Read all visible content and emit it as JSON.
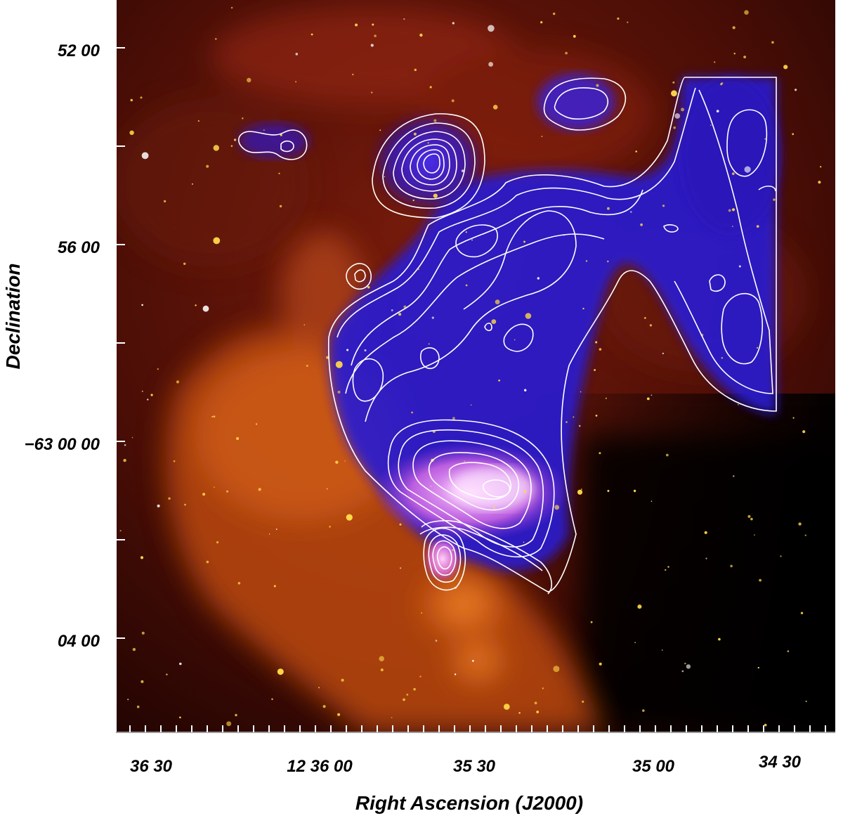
{
  "image": {
    "description_type": "composite astronomical false-color image with radio contour overlay",
    "colors": {
      "background_dust": "#5a1408",
      "nebula_orange": "#e8761c",
      "radio_blue": "#3a22e0",
      "radio_pink": "#f0a8f0",
      "contours": "#ffffff",
      "stars": "#ffd84a"
    }
  },
  "axes": {
    "y_title": "Declination",
    "x_title": "Right Ascension (J2000)",
    "y_ticks": [
      "52 00",
      "56 00",
      "−63 00 00",
      "04 00"
    ],
    "x_ticks": [
      "36 30",
      "12 36 00",
      "35 30",
      "35 00",
      "34 30"
    ]
  }
}
